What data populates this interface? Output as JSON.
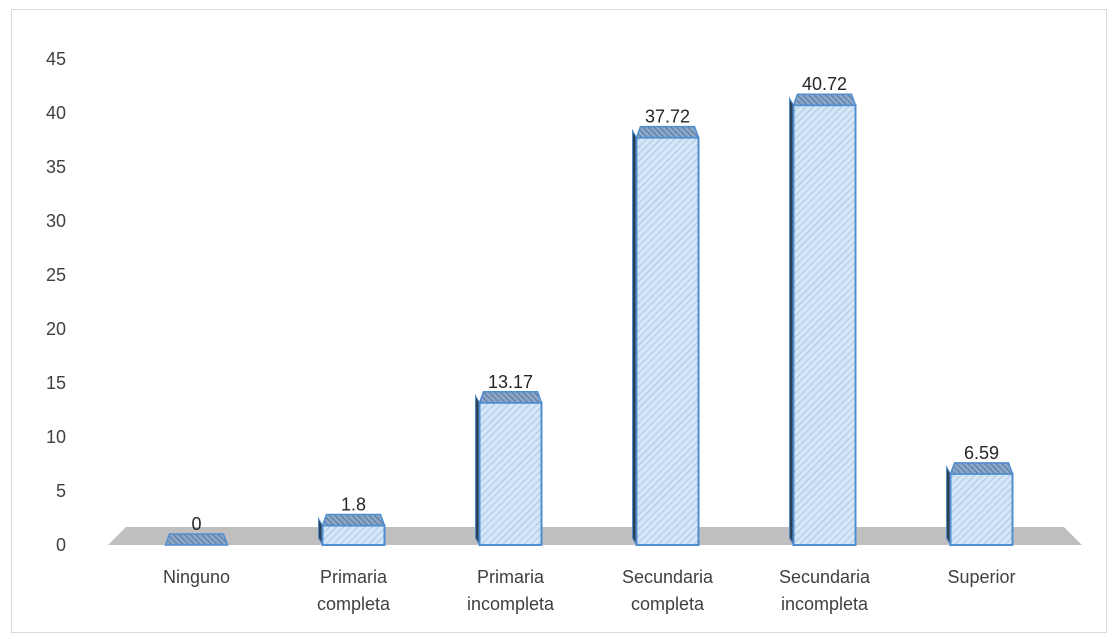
{
  "chart_data": {
    "type": "bar",
    "categories": [
      [
        "Ninguno"
      ],
      [
        "Primaria",
        "completa"
      ],
      [
        "Primaria",
        "incompleta"
      ],
      [
        "Secundaria",
        "completa"
      ],
      [
        "Secundaria",
        "incompleta"
      ],
      [
        "Superior"
      ]
    ],
    "values": [
      0,
      1.8,
      13.17,
      37.72,
      40.72,
      6.59
    ],
    "data_labels": [
      "0",
      "1.8",
      "13.17",
      "37.72",
      "40.72",
      "6.59"
    ],
    "title": "",
    "xlabel": "",
    "ylabel": "",
    "ylim": [
      0,
      45
    ],
    "yticks": [
      0,
      5,
      10,
      15,
      20,
      25,
      30,
      35,
      40,
      45
    ],
    "grid": false,
    "legend": "none",
    "style": "3d-column-hatched",
    "colors": {
      "bar_fill": "#d6e6f6",
      "bar_hatch": "#9fc4e8",
      "bar_top": "#6d8fb8",
      "bar_side": "#2f3f52",
      "bar_edge": "#4f8ed0",
      "floor": "#bfbfbf",
      "axis_text": "#404040",
      "frame": "#d9d9d9"
    }
  }
}
